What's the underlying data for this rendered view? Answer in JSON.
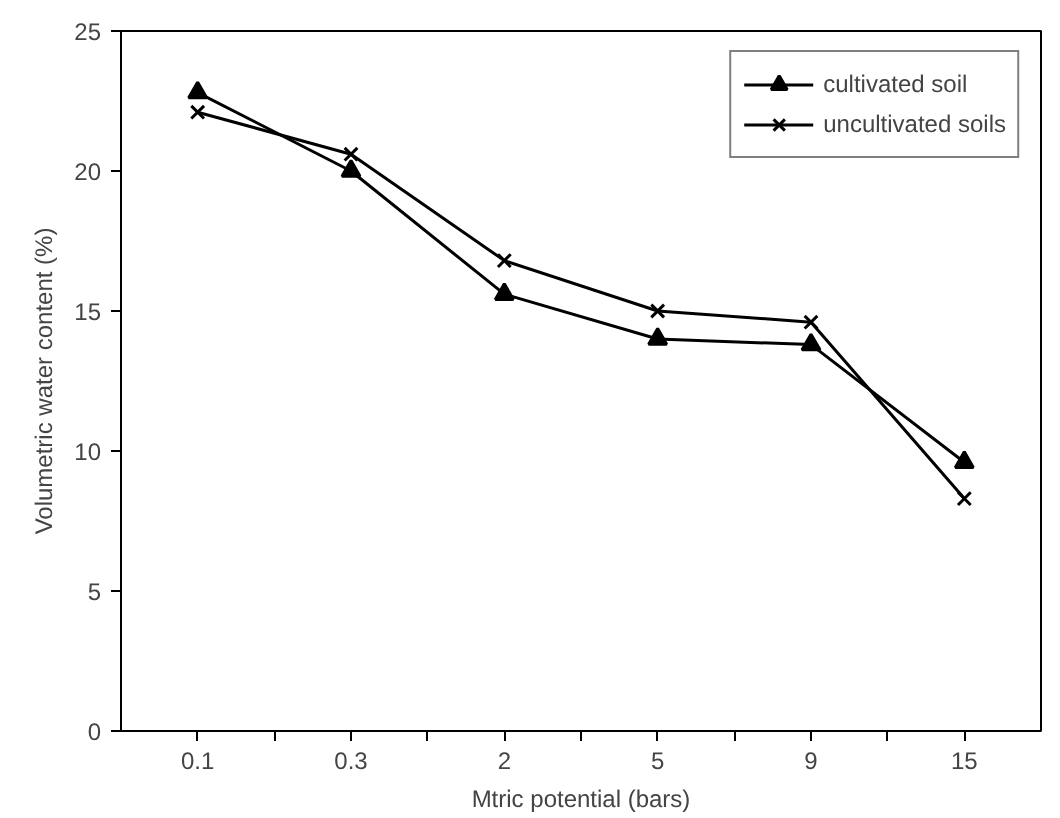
{
  "chart_data": {
    "type": "line",
    "xlabel": "Mtric potential (bars)",
    "ylabel": "Volumetric water content (%)",
    "categories": [
      "0.1",
      "0.3",
      "2",
      "5",
      "9",
      "15"
    ],
    "series": [
      {
        "name": "cultivated soil",
        "color": "#000000",
        "marker": "triangle",
        "values": [
          22.8,
          20.0,
          15.6,
          14.0,
          13.8,
          9.6
        ]
      },
      {
        "name": "uncultivated soils",
        "color": "#000000",
        "marker": "cross",
        "values": [
          22.1,
          20.6,
          16.8,
          15.0,
          14.6,
          8.3
        ]
      }
    ],
    "ylim": [
      0,
      25
    ],
    "yticks": [
      0,
      5,
      10,
      15,
      20,
      25
    ],
    "grid": false,
    "legend": "top right",
    "line_style": "solid"
  }
}
